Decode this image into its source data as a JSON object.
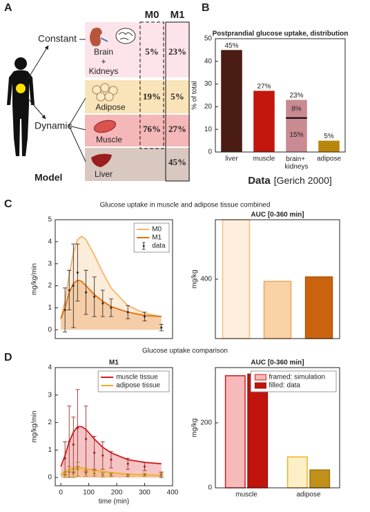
{
  "panel_labels": [
    "A",
    "B",
    "C",
    "D"
  ],
  "model": {
    "title": "Model",
    "constant": "Constant",
    "dynamic": "Dynamic",
    "columns": [
      "M0",
      "M1"
    ],
    "rows": [
      {
        "label": [
          "Brain",
          "+",
          "Kidneys"
        ],
        "values": [
          "5%",
          "23%"
        ]
      },
      {
        "label": [
          "Adipose"
        ],
        "values": [
          "19%",
          "5%"
        ]
      },
      {
        "label": [
          "Muscle"
        ],
        "values": [
          "76%",
          "27%"
        ]
      },
      {
        "label": [
          "Liver"
        ],
        "values": [
          null,
          "45%"
        ]
      }
    ]
  },
  "section_titles": [
    "Glucose uptake in muscle and adipose tissue combined",
    "Glucose uptake comparison"
  ],
  "chart_data": [
    {
      "type": "bar",
      "title": "Postprandial glucose uptake, distribution",
      "ylabel": "% of total",
      "categories": [
        "liver",
        "muscle",
        "brain+ kidneys",
        "adipose"
      ],
      "values": [
        45,
        27,
        23,
        5
      ],
      "value_labels": [
        "45%",
        "27%",
        "23%",
        "5%"
      ],
      "colors": [
        "#4b1c14",
        "#c3170e",
        "#c98a92",
        "#b8860b"
      ],
      "breakdown": [
        null,
        null,
        {
          "values": [
            15,
            8
          ],
          "value_labels": [
            "15%",
            "8%"
          ]
        },
        null
      ],
      "ylim": [
        0,
        50
      ],
      "yticks": [
        0,
        10,
        20,
        30,
        40,
        50
      ],
      "source": {
        "label": "Data",
        "citation": "[Gerich 2000]"
      }
    },
    {
      "type": "line",
      "ylabel": "mg/kg/min",
      "fill_area": true,
      "legend": "upper right",
      "x": [
        0,
        15,
        30,
        45,
        60,
        75,
        90,
        120,
        150,
        180,
        240,
        300,
        360
      ],
      "series": [
        {
          "name": "M0",
          "color": "#f4b46a",
          "values": [
            0.5,
            1.3,
            2.5,
            3.5,
            4.1,
            4.25,
            4.1,
            3.4,
            2.6,
            1.9,
            1.1,
            0.75,
            0.6
          ]
        },
        {
          "name": "M1",
          "color": "#e0700f",
          "values": [
            0.5,
            1.0,
            1.7,
            2.1,
            2.25,
            2.2,
            2.0,
            1.6,
            1.3,
            1.05,
            0.8,
            0.65,
            0.6
          ]
        },
        {
          "name": "data",
          "color": "#333333",
          "x": [
            15,
            30,
            45,
            60,
            90,
            120,
            150,
            180,
            240,
            300,
            360
          ],
          "values": [
            0.9,
            1.8,
            2.0,
            2.6,
            1.7,
            1.5,
            1.2,
            1.0,
            0.8,
            0.6,
            0.1
          ],
          "errors": [
            1.0,
            0.9,
            1.9,
            1.3,
            1.0,
            0.9,
            0.6,
            0.4,
            0.3,
            0.2,
            0.15
          ]
        }
      ],
      "xlim": [
        -20,
        400
      ],
      "ylim": [
        -0.4,
        5
      ],
      "yticks": [
        0,
        1,
        2,
        3,
        4,
        5
      ]
    },
    {
      "type": "bar",
      "title": "AUC [0-360 min]",
      "ylabel": "mg/kg",
      "values": [
        800,
        385,
        415
      ],
      "colors": [
        "#fdeedd",
        "#fbd1a6",
        "#c9630e"
      ],
      "strokes": [
        "#f5c07a",
        "#eda45c",
        "#b0550c"
      ],
      "ylim": [
        0,
        800
      ],
      "yticks": [
        400
      ]
    },
    {
      "type": "line",
      "title": "M1",
      "ylabel": "mg/kg/min",
      "xlabel": "time (min)",
      "fill_area": true,
      "legend": "upper right",
      "x": [
        0,
        15,
        30,
        45,
        60,
        75,
        90,
        120,
        150,
        180,
        240,
        300,
        360
      ],
      "series": [
        {
          "name": "muscle tissue",
          "color": "#d7191c",
          "values": [
            0.4,
            0.8,
            1.3,
            1.65,
            1.85,
            1.85,
            1.75,
            1.4,
            1.1,
            0.9,
            0.65,
            0.55,
            0.5
          ]
        },
        {
          "name": "adipose tissue",
          "color": "#f0b020",
          "values": [
            0.1,
            0.2,
            0.3,
            0.35,
            0.35,
            0.35,
            0.32,
            0.27,
            0.22,
            0.18,
            0.12,
            0.1,
            0.08
          ]
        },
        {
          "color": "#9c2a24",
          "x": [
            15,
            30,
            45,
            60,
            90,
            120,
            150,
            180,
            240,
            300,
            360
          ],
          "values": [
            0.7,
            1.3,
            1.2,
            1.8,
            1.4,
            0.9,
            0.8,
            0.65,
            0.5,
            0.4,
            0.1
          ],
          "errors": [
            0.6,
            1.3,
            1.0,
            1.4,
            1.2,
            0.6,
            0.5,
            0.3,
            0.2,
            0.15,
            0.1
          ]
        },
        {
          "color": "#a87414",
          "x": [
            15,
            30,
            45,
            60,
            90,
            120,
            150,
            180,
            240,
            300,
            360
          ],
          "values": [
            0.1,
            0.2,
            0.15,
            0.3,
            0.15,
            0.15,
            0.1,
            0.1,
            0.08,
            0.1,
            0.1
          ],
          "errors": [
            0.1,
            0.2,
            0.15,
            0.25,
            0.1,
            0.1,
            0.08,
            0.06,
            0.05,
            0.05,
            0.05
          ]
        }
      ],
      "xlim": [
        -20,
        400
      ],
      "ylim": [
        -0.3,
        4
      ],
      "xticks": [
        0,
        100,
        200,
        300,
        400
      ],
      "yticks": [
        0,
        1,
        2,
        3,
        4
      ]
    },
    {
      "type": "bar",
      "title": "AUC [0-360 min]",
      "ylabel": "mg/kg",
      "legend": "upper right",
      "categories": [
        "muscle",
        "adipose"
      ],
      "series": [
        {
          "name": "framed: simulation",
          "colors": [
            "#f7b9b9",
            "#fdf0c8"
          ],
          "strokes": [
            "#d7191c",
            "#f0b020"
          ],
          "values": [
            345,
            95
          ]
        },
        {
          "name": "filled: data",
          "colors": [
            "#c0140c",
            "#c0901a"
          ],
          "strokes": [
            "#a01010",
            "#a07510"
          ],
          "values": [
            350,
            55
          ]
        }
      ],
      "ylim": [
        0,
        370
      ],
      "yticks": [
        0,
        200
      ]
    }
  ]
}
